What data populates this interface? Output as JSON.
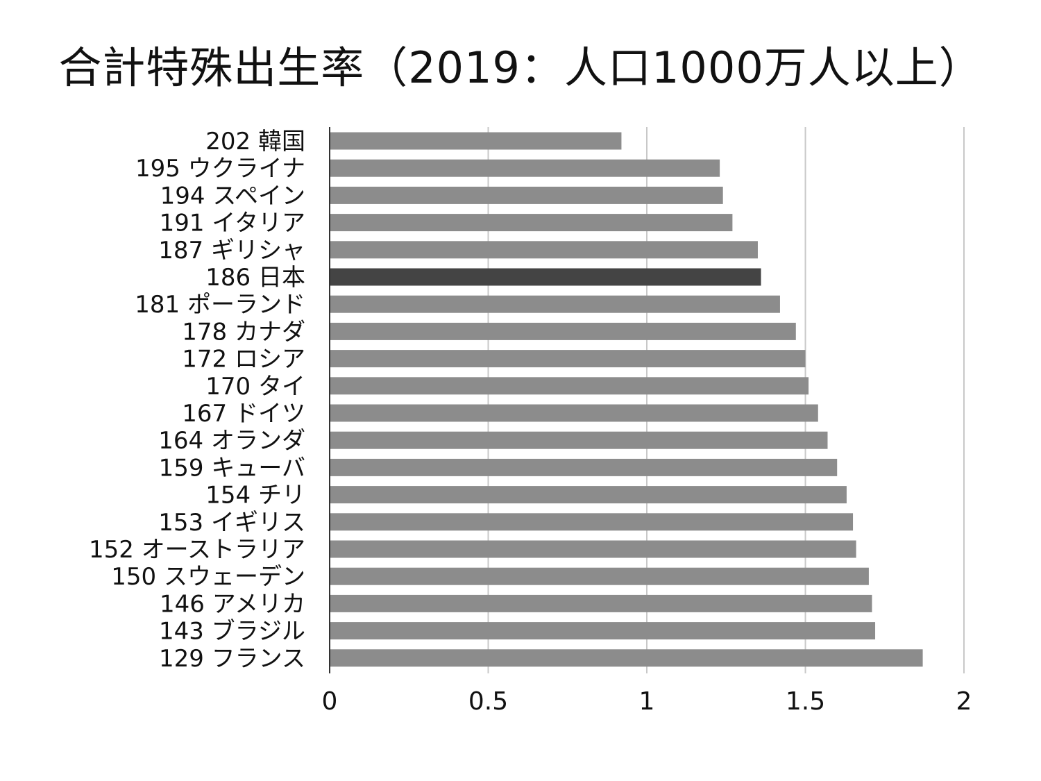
{
  "chart_data": {
    "type": "bar",
    "orientation": "horizontal",
    "title": "合計特殊出生率（2019：人口1000万人以上）",
    "xlabel": "",
    "ylabel": "",
    "xlim": [
      0,
      2
    ],
    "xticks": [
      0,
      0.5,
      1,
      1.5,
      2
    ],
    "xtick_labels": [
      "0",
      "0.5",
      "1",
      "1.5",
      "2"
    ],
    "grid": "vertical",
    "legend": "none",
    "colors": {
      "bar": "#8c8c8c",
      "highlight": "#444444",
      "grid": "#c8c8c8",
      "axis": "#333333"
    },
    "categories": [
      "202 韓国",
      "195 ウクライナ",
      "194 スペイン",
      "191 イタリア",
      "187 ギリシャ",
      "186 日本",
      "181 ポーランド",
      "178 カナダ",
      "172 ロシア",
      "170 タイ",
      "167 ドイツ",
      "164 オランダ",
      "159 キューバ",
      "154 チリ",
      "153 イギリス",
      "152 オーストラリア",
      "150 スウェーデン",
      "146 アメリカ",
      "143 ブラジル",
      "129 フランス"
    ],
    "values": [
      0.92,
      1.23,
      1.24,
      1.27,
      1.35,
      1.36,
      1.42,
      1.47,
      1.5,
      1.51,
      1.54,
      1.57,
      1.6,
      1.63,
      1.65,
      1.66,
      1.7,
      1.71,
      1.72,
      1.87
    ],
    "highlight": "186 日本"
  }
}
